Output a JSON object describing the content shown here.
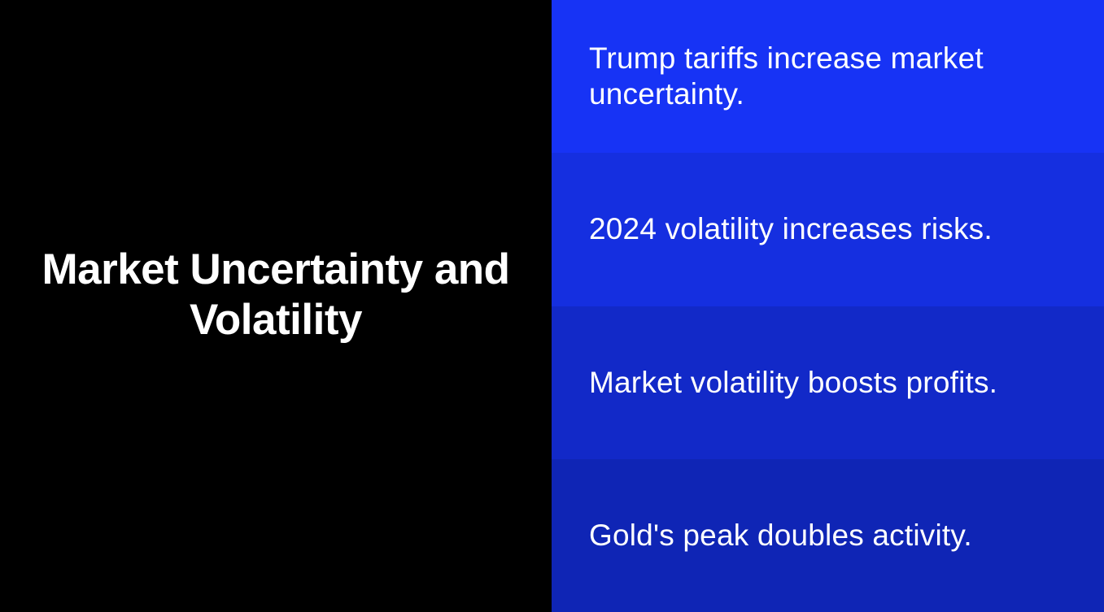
{
  "title": "Market Uncertainty and Volatility",
  "points": [
    "Trump tariffs increase market uncertainty.",
    "2024 volatility increases risks.",
    "Market volatility boosts profits.",
    "Gold's peak doubles activity."
  ],
  "colors": {
    "left_background": "#000000",
    "row_backgrounds": [
      "#1733f5",
      "#152fe0",
      "#1229c8",
      "#0f25b5"
    ],
    "text": "#ffffff"
  }
}
